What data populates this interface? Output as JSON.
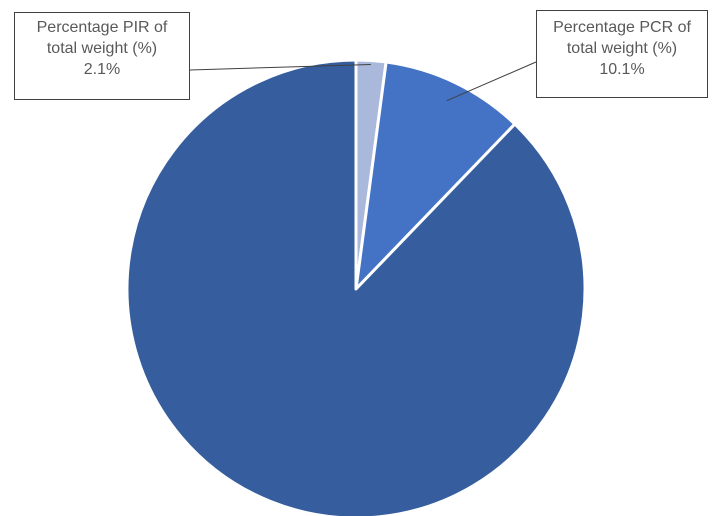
{
  "chart_data": {
    "type": "pie",
    "slices": [
      {
        "label": "",
        "value": 87.8,
        "color": "#365E9E"
      },
      {
        "label": "Percentage PIR of total weight (%)",
        "value": 2.1,
        "display_value": "2.1%",
        "color": "#AAB8DB"
      },
      {
        "label": "Percentage PCR of total weight (%)",
        "value": 10.1,
        "display_value": "10.1%",
        "color": "#4472C4"
      }
    ],
    "start": "12 o'clock, clockwise",
    "slice_border_color": "#FFFFFF",
    "leader_line_color": "#404040"
  },
  "labels": {
    "pir": {
      "line1": "Percentage PIR of",
      "line2": "total weight (%)",
      "value": "2.1%"
    },
    "pcr": {
      "line1": "Percentage PCR of",
      "line2": "total weight (%)",
      "value": "10.1%"
    }
  }
}
